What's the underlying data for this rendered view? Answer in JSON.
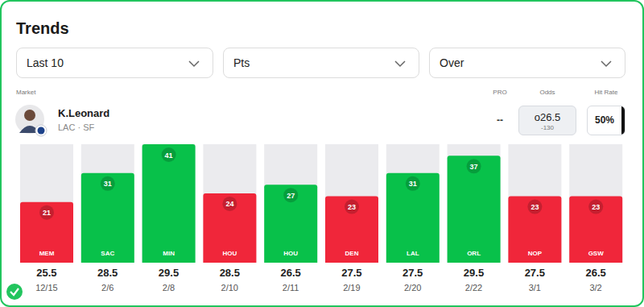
{
  "title": "Trends",
  "filters": [
    "Last 10",
    "Pts",
    "Over"
  ],
  "market": {
    "label": "Market",
    "player": "K.Leonard",
    "team": "LAC · SF",
    "pro_label": "PRO",
    "pro": "--",
    "odds_label": "Odds",
    "odds_line": "o26.5",
    "odds_price": "-130",
    "hit_rate_label": "Hit Rate",
    "hit_rate": "50%"
  },
  "chart_data": {
    "type": "bar",
    "categories": [
      "MEM",
      "SAC",
      "MIN",
      "HOU",
      "HOU",
      "DEN",
      "LAL",
      "ORL",
      "NOP",
      "GSW"
    ],
    "values": [
      21,
      31,
      41,
      24,
      27,
      23,
      31,
      37,
      23,
      23
    ],
    "lines": [
      25.5,
      28.5,
      29.5,
      28.5,
      26.5,
      27.5,
      27.5,
      29.5,
      27.5,
      26.5
    ],
    "dates": [
      "12/15",
      "2/6",
      "2/8",
      "2/10",
      "2/11",
      "2/19",
      "2/20",
      "2/22",
      "3/1",
      "3/2"
    ],
    "colors": [
      "#f0263a",
      "#08c14a",
      "#08c14a",
      "#f0263a",
      "#08c14a",
      "#f0263a",
      "#08c14a",
      "#08c14a",
      "#f0263a",
      "#f0263a"
    ],
    "ylim": [
      0,
      41
    ],
    "data_labels": true,
    "tick_labels": "x"
  }
}
